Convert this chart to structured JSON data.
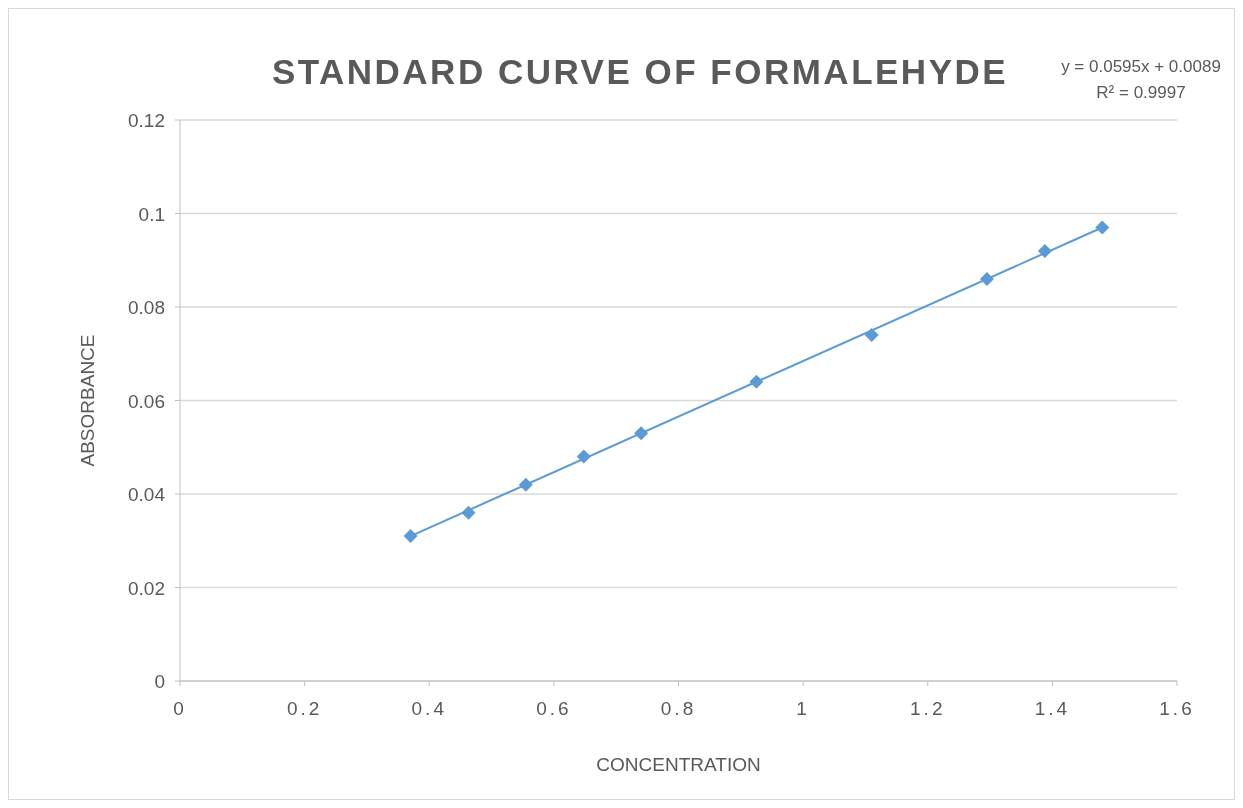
{
  "chart_data": {
    "type": "scatter",
    "title": "STANDARD CURVE OF FORMALEHYDE",
    "xlabel": "CONCENTRATION",
    "ylabel": "ABSORBANCE",
    "annotations": [
      "y = 0.0595x + 0.0089",
      "R² = 0.9997"
    ],
    "series": [
      {
        "color": "#5b9bd5",
        "marker": "diamond",
        "x": [
          0.37,
          0.463,
          0.555,
          0.648,
          0.74,
          0.925,
          1.11,
          1.295,
          1.388,
          1.48
        ],
        "values": [
          0.031,
          0.036,
          0.042,
          0.048,
          0.053,
          0.064,
          0.074,
          0.086,
          0.092,
          0.097
        ]
      },
      {
        "type": "line",
        "color": "#5b9bd5",
        "marker": "none",
        "x": [
          0.37,
          1.48
        ],
        "values": [
          0.031,
          0.097
        ]
      }
    ],
    "xlim": [
      0,
      1.6
    ],
    "xticks": [
      0,
      0.2,
      0.4,
      0.6,
      0.8,
      1,
      1.2,
      1.4,
      1.6
    ],
    "ylim": [
      0,
      0.12
    ],
    "yticks": [
      0,
      0.02,
      0.04,
      0.06,
      0.08,
      0.1,
      0.12
    ],
    "grid": "y"
  }
}
